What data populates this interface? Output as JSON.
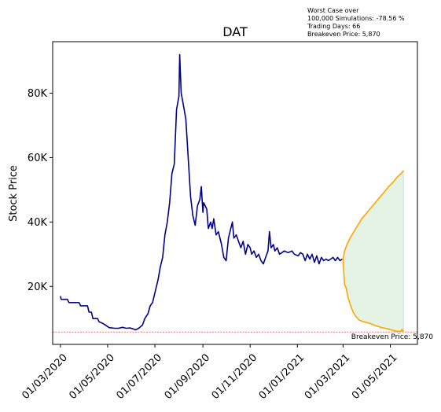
{
  "chart_data": {
    "type": "line",
    "title": "DAT",
    "xlabel": "",
    "ylabel": "Stock Price",
    "x_ticks": [
      "01/03/2020",
      "01/05/2020",
      "01/07/2020",
      "01/09/2020",
      "01/11/2020",
      "01/01/2021",
      "01/03/2021",
      "01/05/2021"
    ],
    "y_ticks": [
      "20K",
      "40K",
      "60K",
      "80K"
    ],
    "y_tick_values": [
      20000,
      40000,
      60000,
      80000
    ],
    "ylim": [
      2000,
      96000
    ],
    "xlim": [
      "2020-02-20",
      "2021-06-05"
    ],
    "notes": [
      "Worst Case over",
      "100,000 Simulations: -78.56 %",
      "Trading Days: 66",
      "Breakeven Price: 5,870"
    ],
    "breakeven": {
      "value": 5870,
      "label": "Breakeven Price: 5,870",
      "color": "#d62728"
    },
    "series": [
      {
        "color": "#00008b",
        "points": [
          [
            "2020-03-01",
            17000
          ],
          [
            "2020-03-02",
            16000
          ],
          [
            "2020-03-10",
            16000
          ],
          [
            "2020-03-12",
            15000
          ],
          [
            "2020-03-25",
            15000
          ],
          [
            "2020-03-27",
            14000
          ],
          [
            "2020-04-05",
            14000
          ],
          [
            "2020-04-07",
            12000
          ],
          [
            "2020-04-10",
            12000
          ],
          [
            "2020-04-12",
            10000
          ],
          [
            "2020-04-18",
            10000
          ],
          [
            "2020-04-20",
            9000
          ],
          [
            "2020-04-25",
            8500
          ],
          [
            "2020-04-28",
            8000
          ],
          [
            "2020-05-03",
            7200
          ],
          [
            "2020-05-10",
            7000
          ],
          [
            "2020-05-15",
            7000
          ],
          [
            "2020-05-20",
            7300
          ],
          [
            "2020-05-25",
            7000
          ],
          [
            "2020-05-30",
            7100
          ],
          [
            "2020-06-03",
            6800
          ],
          [
            "2020-06-06",
            6500
          ],
          [
            "2020-06-10",
            7000
          ],
          [
            "2020-06-15",
            8000
          ],
          [
            "2020-06-18",
            10000
          ],
          [
            "2020-06-22",
            11500
          ],
          [
            "2020-06-25",
            14000
          ],
          [
            "2020-06-28",
            15000
          ],
          [
            "2020-07-02",
            19000
          ],
          [
            "2020-07-05",
            22000
          ],
          [
            "2020-07-08",
            26000
          ],
          [
            "2020-07-11",
            29000
          ],
          [
            "2020-07-14",
            36000
          ],
          [
            "2020-07-17",
            40000
          ],
          [
            "2020-07-20",
            46000
          ],
          [
            "2020-07-23",
            55000
          ],
          [
            "2020-07-26",
            58000
          ],
          [
            "2020-07-29",
            75000
          ],
          [
            "2020-08-01",
            79000
          ],
          [
            "2020-08-02",
            92000
          ],
          [
            "2020-08-04",
            80000
          ],
          [
            "2020-08-07",
            76000
          ],
          [
            "2020-08-10",
            72000
          ],
          [
            "2020-08-13",
            60000
          ],
          [
            "2020-08-16",
            48000
          ],
          [
            "2020-08-19",
            42000
          ],
          [
            "2020-08-22",
            39000
          ],
          [
            "2020-08-25",
            45000
          ],
          [
            "2020-08-28",
            47000
          ],
          [
            "2020-08-30",
            51000
          ],
          [
            "2020-09-01",
            43000
          ],
          [
            "2020-09-02",
            46000
          ],
          [
            "2020-09-04",
            45000
          ],
          [
            "2020-09-06",
            44000
          ],
          [
            "2020-09-08",
            38000
          ],
          [
            "2020-09-11",
            40000
          ],
          [
            "2020-09-13",
            38000
          ],
          [
            "2020-09-15",
            41000
          ],
          [
            "2020-09-18",
            36000
          ],
          [
            "2020-09-21",
            37000
          ],
          [
            "2020-09-25",
            33000
          ],
          [
            "2020-09-28",
            29000
          ],
          [
            "2020-10-01",
            28000
          ],
          [
            "2020-10-04",
            35000
          ],
          [
            "2020-10-07",
            38000
          ],
          [
            "2020-10-09",
            40000
          ],
          [
            "2020-10-11",
            35000
          ],
          [
            "2020-10-14",
            36000
          ],
          [
            "2020-10-17",
            34000
          ],
          [
            "2020-10-20",
            32000
          ],
          [
            "2020-10-23",
            34000
          ],
          [
            "2020-10-26",
            30000
          ],
          [
            "2020-10-29",
            33000
          ],
          [
            "2020-11-01",
            32000
          ],
          [
            "2020-11-03",
            30000
          ],
          [
            "2020-11-06",
            31000
          ],
          [
            "2020-11-09",
            29000
          ],
          [
            "2020-11-12",
            30000
          ],
          [
            "2020-11-15",
            28000
          ],
          [
            "2020-11-18",
            27000
          ],
          [
            "2020-11-21",
            29000
          ],
          [
            "2020-11-24",
            31000
          ],
          [
            "2020-11-26",
            37000
          ],
          [
            "2020-11-28",
            32000
          ],
          [
            "2020-12-01",
            33000
          ],
          [
            "2020-12-03",
            31000
          ],
          [
            "2020-12-06",
            32000
          ],
          [
            "2020-12-09",
            30000
          ],
          [
            "2020-12-12",
            30500
          ],
          [
            "2020-12-15",
            31000
          ],
          [
            "2020-12-20",
            30500
          ],
          [
            "2020-12-25",
            31000
          ],
          [
            "2020-12-28",
            30000
          ],
          [
            "2021-01-02",
            29500
          ],
          [
            "2021-01-05",
            30500
          ],
          [
            "2021-01-08",
            30000
          ],
          [
            "2021-01-11",
            28000
          ],
          [
            "2021-01-14",
            30000
          ],
          [
            "2021-01-17",
            28500
          ],
          [
            "2021-01-20",
            30000
          ],
          [
            "2021-01-23",
            27500
          ],
          [
            "2021-01-26",
            29500
          ],
          [
            "2021-01-29",
            27000
          ],
          [
            "2021-02-01",
            29000
          ],
          [
            "2021-02-04",
            28000
          ],
          [
            "2021-02-07",
            28500
          ],
          [
            "2021-02-10",
            28000
          ],
          [
            "2021-02-13",
            28500
          ],
          [
            "2021-02-16",
            29000
          ],
          [
            "2021-02-19",
            28000
          ],
          [
            "2021-02-22",
            29000
          ],
          [
            "2021-02-25",
            28000
          ],
          [
            "2021-02-28",
            28500
          ]
        ]
      },
      {
        "color": "#ffa500",
        "points": [
          [
            "2021-03-01",
            28500
          ],
          [
            "2021-03-03",
            31000
          ],
          [
            "2021-03-06",
            33000
          ],
          [
            "2021-03-10",
            35000
          ],
          [
            "2021-03-15",
            37000
          ],
          [
            "2021-03-20",
            39000
          ],
          [
            "2021-03-25",
            41000
          ],
          [
            "2021-04-01",
            43000
          ],
          [
            "2021-04-08",
            45000
          ],
          [
            "2021-04-15",
            47000
          ],
          [
            "2021-04-22",
            49000
          ],
          [
            "2021-04-29",
            51000
          ],
          [
            "2021-05-05",
            52500
          ],
          [
            "2021-05-10",
            54000
          ],
          [
            "2021-05-15",
            55000
          ],
          [
            "2021-05-18",
            56000
          ]
        ]
      },
      {
        "color": "#ffa500",
        "points": [
          [
            "2021-03-01",
            28500
          ],
          [
            "2021-03-02",
            24000
          ],
          [
            "2021-03-03",
            20500
          ],
          [
            "2021-03-05",
            19500
          ],
          [
            "2021-03-07",
            17000
          ],
          [
            "2021-03-10",
            14500
          ],
          [
            "2021-03-14",
            12000
          ],
          [
            "2021-03-18",
            10500
          ],
          [
            "2021-03-22",
            9500
          ],
          [
            "2021-03-28",
            9000
          ],
          [
            "2021-04-05",
            8500
          ],
          [
            "2021-04-12",
            7800
          ],
          [
            "2021-04-20",
            7200
          ],
          [
            "2021-04-28",
            6800
          ],
          [
            "2021-05-05",
            6300
          ],
          [
            "2021-05-10",
            6100
          ],
          [
            "2021-05-15",
            6000
          ],
          [
            "2021-05-16",
            6700
          ],
          [
            "2021-05-18",
            5800
          ]
        ]
      }
    ],
    "band": {
      "color": "#2ca02c",
      "upper_series": 1,
      "lower_series": 2
    }
  }
}
